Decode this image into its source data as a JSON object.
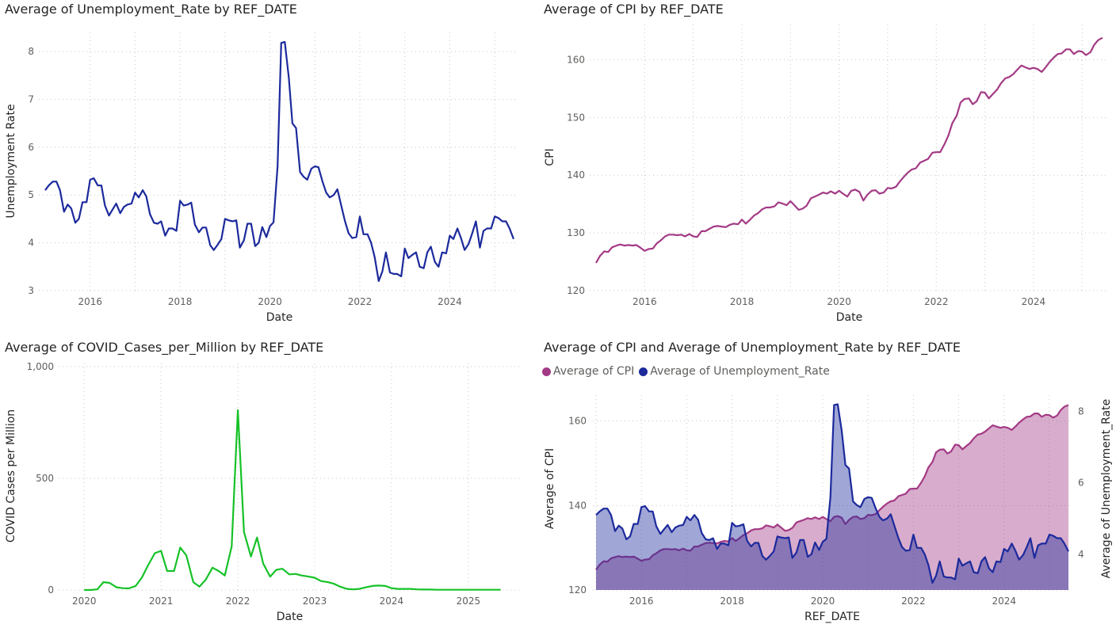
{
  "colors": {
    "blue": "#1c2a9c",
    "purple": "#a33a85",
    "green": "#15c227"
  },
  "panels": {
    "p1": {
      "title": "Average of Unemployment_Rate by REF_DATE"
    },
    "p2": {
      "title": "Average of CPI by REF_DATE"
    },
    "p3": {
      "title": "Average of COVID_Cases_per_Million by REF_DATE"
    },
    "p4": {
      "title": "Average of CPI and Average of Unemployment_Rate by REF_DATE",
      "legend": [
        "Average of CPI",
        "Average of Unemployment_Rate"
      ]
    }
  },
  "chart_data": [
    {
      "type": "line",
      "title": "Average of Unemployment_Rate by REF_DATE",
      "xlabel": "Date",
      "ylabel": "Unemployment Rate",
      "xlim": [
        2015.0,
        2025.42
      ],
      "ylim": [
        3,
        8.3
      ],
      "xticks": [
        2016,
        2018,
        2020,
        2022,
        2024
      ],
      "yticks": [
        3,
        4,
        5,
        6,
        7,
        8
      ],
      "grid": true,
      "series": [
        {
          "color": "#1c2a9c",
          "x": [
            2015.0,
            2015.08,
            2015.17,
            2015.25,
            2015.33,
            2015.42,
            2015.5,
            2015.58,
            2015.67,
            2015.75,
            2015.83,
            2015.92,
            2016.0,
            2016.08,
            2016.17,
            2016.25,
            2016.33,
            2016.42,
            2016.5,
            2016.58,
            2016.67,
            2016.75,
            2016.83,
            2016.92,
            2017.0,
            2017.08,
            2017.17,
            2017.25,
            2017.33,
            2017.42,
            2017.5,
            2017.58,
            2017.67,
            2017.75,
            2017.83,
            2017.92,
            2018.0,
            2018.08,
            2018.17,
            2018.25,
            2018.33,
            2018.42,
            2018.5,
            2018.58,
            2018.67,
            2018.75,
            2018.83,
            2018.92,
            2019.0,
            2019.08,
            2019.17,
            2019.25,
            2019.33,
            2019.42,
            2019.5,
            2019.58,
            2019.67,
            2019.75,
            2019.83,
            2019.92,
            2020.0,
            2020.08,
            2020.17,
            2020.25,
            2020.33,
            2020.42,
            2020.5,
            2020.58,
            2020.67,
            2020.75,
            2020.83,
            2020.92,
            2021.0,
            2021.08,
            2021.17,
            2021.25,
            2021.33,
            2021.42,
            2021.5,
            2021.58,
            2021.67,
            2021.75,
            2021.83,
            2021.92,
            2022.0,
            2022.08,
            2022.17,
            2022.25,
            2022.33,
            2022.42,
            2022.5,
            2022.58,
            2022.67,
            2022.75,
            2022.83,
            2022.92,
            2023.0,
            2023.08,
            2023.17,
            2023.25,
            2023.33,
            2023.42,
            2023.5,
            2023.58,
            2023.67,
            2023.75,
            2023.83,
            2023.92,
            2024.0,
            2024.08,
            2024.17,
            2024.25,
            2024.33,
            2024.42,
            2024.5,
            2024.58,
            2024.67,
            2024.75,
            2024.83,
            2024.92,
            2025.0,
            2025.08,
            2025.17,
            2025.25,
            2025.33,
            2025.42
          ],
          "y": [
            5.1,
            5.2,
            5.28,
            5.28,
            5.1,
            4.65,
            4.8,
            4.72,
            4.42,
            4.5,
            4.85,
            4.85,
            5.32,
            5.35,
            5.2,
            5.2,
            4.78,
            4.57,
            4.7,
            4.82,
            4.62,
            4.75,
            4.8,
            4.82,
            5.05,
            4.95,
            5.1,
            4.97,
            4.6,
            4.42,
            4.4,
            4.45,
            4.15,
            4.3,
            4.3,
            4.25,
            4.88,
            4.78,
            4.8,
            4.84,
            4.38,
            4.22,
            4.32,
            4.32,
            3.95,
            3.85,
            3.95,
            4.08,
            4.5,
            4.47,
            4.45,
            4.47,
            3.9,
            4.05,
            4.4,
            4.4,
            3.93,
            4.0,
            4.33,
            4.12,
            4.35,
            4.43,
            5.6,
            8.18,
            8.2,
            7.45,
            6.5,
            6.4,
            5.48,
            5.38,
            5.32,
            5.55,
            5.6,
            5.58,
            5.28,
            5.05,
            4.95,
            5.0,
            5.12,
            4.8,
            4.45,
            4.2,
            4.1,
            4.12,
            4.55,
            4.18,
            4.18,
            4.0,
            3.7,
            3.2,
            3.4,
            3.8,
            3.38,
            3.35,
            3.35,
            3.3,
            3.88,
            3.68,
            3.75,
            3.8,
            3.5,
            3.47,
            3.8,
            3.92,
            3.6,
            3.5,
            3.8,
            3.78,
            4.15,
            4.08,
            4.3,
            4.1,
            3.85,
            3.98,
            4.2,
            4.45,
            3.9,
            4.25,
            4.3,
            4.3,
            4.55,
            4.52,
            4.45,
            4.45,
            4.3,
            4.08
          ]
        }
      ]
    },
    {
      "type": "line",
      "title": "Average of CPI by REF_DATE",
      "xlabel": "Date",
      "ylabel": "CPI",
      "xlim": [
        2015.0,
        2025.42
      ],
      "ylim": [
        120,
        165
      ],
      "xticks": [
        2016,
        2018,
        2020,
        2022,
        2024
      ],
      "yticks": [
        120,
        130,
        140,
        150,
        160
      ],
      "grid": true,
      "series": [
        {
          "color": "#a33a85",
          "x": [
            2015.0,
            2015.08,
            2015.17,
            2015.25,
            2015.33,
            2015.42,
            2015.5,
            2015.58,
            2015.67,
            2015.75,
            2015.83,
            2015.92,
            2016.0,
            2016.08,
            2016.17,
            2016.25,
            2016.33,
            2016.42,
            2016.5,
            2016.58,
            2016.67,
            2016.75,
            2016.83,
            2016.92,
            2017.0,
            2017.08,
            2017.17,
            2017.25,
            2017.33,
            2017.42,
            2017.5,
            2017.58,
            2017.67,
            2017.75,
            2017.83,
            2017.92,
            2018.0,
            2018.08,
            2018.17,
            2018.25,
            2018.33,
            2018.42,
            2018.5,
            2018.58,
            2018.67,
            2018.75,
            2018.83,
            2018.92,
            2019.0,
            2019.08,
            2019.17,
            2019.25,
            2019.33,
            2019.42,
            2019.5,
            2019.58,
            2019.67,
            2019.75,
            2019.83,
            2019.92,
            2020.0,
            2020.08,
            2020.17,
            2020.25,
            2020.33,
            2020.42,
            2020.5,
            2020.58,
            2020.67,
            2020.75,
            2020.83,
            2020.92,
            2021.0,
            2021.08,
            2021.17,
            2021.25,
            2021.33,
            2021.42,
            2021.5,
            2021.58,
            2021.67,
            2021.75,
            2021.83,
            2021.92,
            2022.0,
            2022.08,
            2022.17,
            2022.25,
            2022.33,
            2022.42,
            2022.5,
            2022.58,
            2022.67,
            2022.75,
            2022.83,
            2022.92,
            2023.0,
            2023.08,
            2023.17,
            2023.25,
            2023.33,
            2023.42,
            2023.5,
            2023.58,
            2023.67,
            2023.75,
            2023.83,
            2023.92,
            2024.0,
            2024.08,
            2024.17,
            2024.25,
            2024.33,
            2024.42,
            2024.5,
            2024.58,
            2024.67,
            2024.75,
            2024.83,
            2024.92,
            2025.0,
            2025.08,
            2025.17,
            2025.25,
            2025.33,
            2025.42
          ],
          "y": [
            124.8,
            126.0,
            126.8,
            126.7,
            127.5,
            127.8,
            128.0,
            127.8,
            127.9,
            127.8,
            127.9,
            127.4,
            126.9,
            127.2,
            127.3,
            128.2,
            128.7,
            129.4,
            129.7,
            129.7,
            129.6,
            129.7,
            129.4,
            129.8,
            129.4,
            129.3,
            130.3,
            130.3,
            130.7,
            131.1,
            131.2,
            131.1,
            131.0,
            131.4,
            131.6,
            131.5,
            132.3,
            131.6,
            132.3,
            133.0,
            133.4,
            134.1,
            134.4,
            134.4,
            134.6,
            135.3,
            135.1,
            134.8,
            135.5,
            134.8,
            134.0,
            134.2,
            134.7,
            136.0,
            136.3,
            136.6,
            137.0,
            136.8,
            137.2,
            136.8,
            137.3,
            136.8,
            136.3,
            137.3,
            137.5,
            137.1,
            135.6,
            136.6,
            137.3,
            137.4,
            136.8,
            137.0,
            137.8,
            137.7,
            138.0,
            138.9,
            139.7,
            140.5,
            141.0,
            141.2,
            142.2,
            142.5,
            142.8,
            143.9,
            144.0,
            144.0,
            145.4,
            146.9,
            149.0,
            150.3,
            152.6,
            153.2,
            153.3,
            152.3,
            152.8,
            154.4,
            154.3,
            153.3,
            154.1,
            154.8,
            155.9,
            156.8,
            157.0,
            157.5,
            158.3,
            159.0,
            158.7,
            158.4,
            158.6,
            158.4,
            157.9,
            158.7,
            159.6,
            160.4,
            161.0,
            161.1,
            161.8,
            161.8,
            161.0,
            161.5,
            161.4,
            160.8,
            161.3,
            162.6,
            163.4,
            163.8
          ]
        }
      ]
    },
    {
      "type": "line",
      "title": "Average of COVID_Cases_per_Million by REF_DATE",
      "xlabel": "Date",
      "ylabel": "COVID Cases per Million",
      "xlim": [
        2019.75,
        2025.6
      ],
      "ylim": [
        0,
        1000
      ],
      "xticks": [
        2020,
        2021,
        2022,
        2023,
        2024,
        2025
      ],
      "yticks": [
        0,
        500,
        1000
      ],
      "ytick_labels": [
        "0",
        "500",
        "1,000"
      ],
      "grid": true,
      "series": [
        {
          "color": "#15c227",
          "x": [
            2020.0,
            2020.08,
            2020.17,
            2020.25,
            2020.33,
            2020.42,
            2020.5,
            2020.58,
            2020.67,
            2020.75,
            2020.83,
            2020.92,
            2021.0,
            2021.08,
            2021.17,
            2021.25,
            2021.33,
            2021.42,
            2021.5,
            2021.58,
            2021.67,
            2021.75,
            2021.83,
            2021.92,
            2022.0,
            2022.08,
            2022.17,
            2022.25,
            2022.33,
            2022.42,
            2022.5,
            2022.58,
            2022.67,
            2022.75,
            2022.83,
            2022.92,
            2023.0,
            2023.08,
            2023.17,
            2023.25,
            2023.33,
            2023.42,
            2023.5,
            2023.58,
            2023.67,
            2023.75,
            2023.83,
            2023.92,
            2024.0,
            2024.08,
            2024.17,
            2024.25,
            2024.33,
            2024.42,
            2024.5,
            2024.58,
            2024.67,
            2024.75,
            2024.83,
            2024.92,
            2025.0,
            2025.08,
            2025.17,
            2025.25,
            2025.33,
            2025.42
          ],
          "y": [
            0,
            0,
            3,
            35,
            32,
            12,
            8,
            7,
            18,
            55,
            110,
            165,
            175,
            85,
            85,
            190,
            155,
            35,
            15,
            45,
            100,
            85,
            65,
            195,
            805,
            260,
            150,
            235,
            118,
            60,
            90,
            95,
            70,
            72,
            65,
            60,
            55,
            40,
            35,
            28,
            15,
            5,
            3,
            5,
            12,
            18,
            20,
            18,
            8,
            5,
            5,
            5,
            3,
            2,
            2,
            1,
            1,
            1,
            1,
            1,
            1,
            1,
            1,
            1,
            1,
            1
          ]
        }
      ]
    },
    {
      "type": "area",
      "title": "Average of CPI and Average of Unemployment_Rate by REF_DATE",
      "xlabel": "REF_DATE",
      "ylabel": "Average of CPI",
      "y2label": "Average of Unemployment_Rate",
      "xlim": [
        2015.0,
        2025.42
      ],
      "ylim": [
        120,
        168
      ],
      "y2lim": [
        3,
        8.5
      ],
      "xticks": [
        2016,
        2018,
        2020,
        2022,
        2024
      ],
      "yticks": [
        120,
        140,
        160
      ],
      "y2ticks": [
        4,
        6,
        8
      ],
      "grid": true,
      "legend_position": "top-left",
      "series": [
        {
          "name": "Average of CPI",
          "axis": "left",
          "color": "#a33a85",
          "ref": "CPI"
        },
        {
          "name": "Average of Unemployment_Rate",
          "axis": "right",
          "color": "#1c2a9c",
          "ref": "Unemployment_Rate"
        }
      ]
    }
  ]
}
